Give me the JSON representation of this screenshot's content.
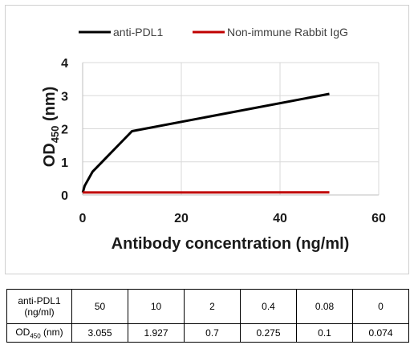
{
  "chart_data": {
    "type": "line",
    "x": [
      0,
      0.08,
      0.4,
      2,
      10,
      50
    ],
    "series": [
      {
        "name": "anti-PDL1",
        "color": "#000000",
        "values": [
          0.074,
          0.1,
          0.275,
          0.7,
          1.927,
          3.055
        ]
      },
      {
        "name": "Non-immune Rabbit IgG",
        "color": "#c00000",
        "values": [
          0.074,
          0.074,
          0.074,
          0.075,
          0.076,
          0.078
        ]
      }
    ],
    "xlabel": "Antibody concentration (ng/ml)",
    "ylabel": {
      "main": "OD",
      "sub": "450",
      "unit": " (nm)"
    },
    "xlim": [
      0,
      60
    ],
    "ylim": [
      0,
      4
    ],
    "xticks": [
      "0",
      "20",
      "40",
      "60"
    ],
    "yticks": [
      "0",
      "1",
      "2",
      "3",
      "4"
    ],
    "grid": true,
    "legend_position": "top"
  },
  "table": {
    "header_label": "anti-PDL1 (ng/ml)",
    "row_label": {
      "main": "OD",
      "sub": "450",
      "unit": " (nm)"
    },
    "concentrations": [
      "50",
      "10",
      "2",
      "0.4",
      "0.08",
      "0"
    ],
    "od_values": [
      "3.055",
      "1.927",
      "0.7",
      "0.275",
      "0.1",
      "0.074"
    ]
  }
}
